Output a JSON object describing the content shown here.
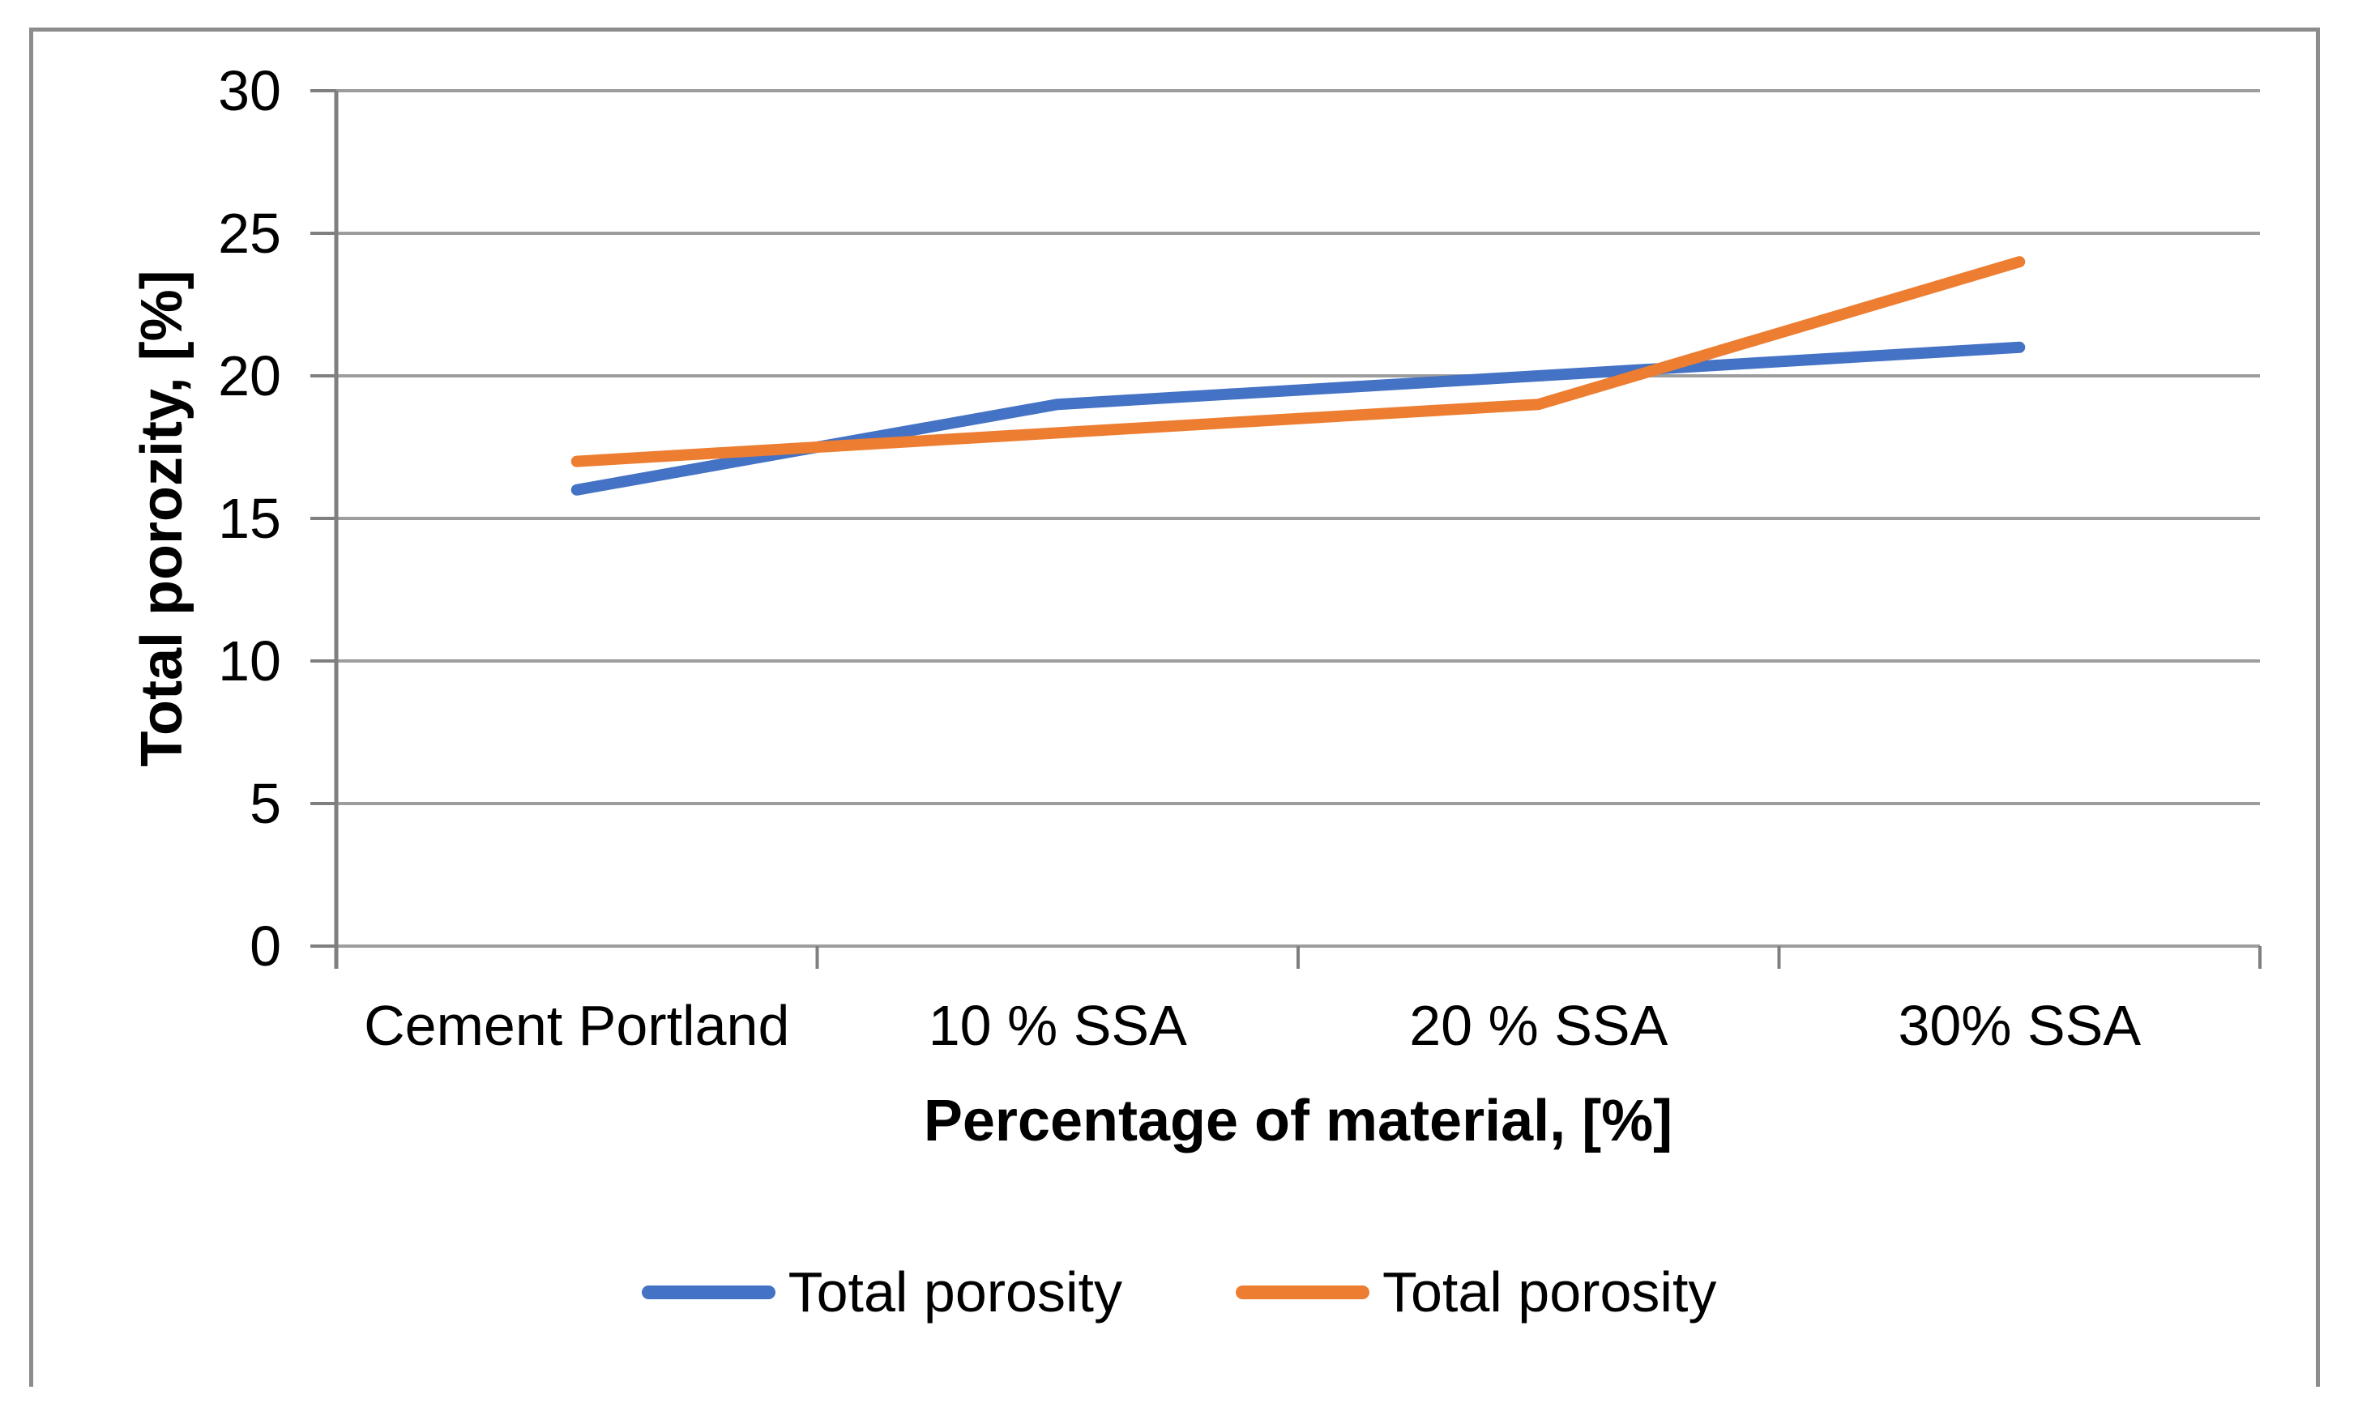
{
  "figure": {
    "border_color": "#8c8c8c",
    "background_color": "#ffffff",
    "gridline_color": "#9d9d9d",
    "axis_color": "#7f7f7f",
    "text_color": "#000000"
  },
  "chart_data": {
    "type": "line",
    "title": "",
    "categories": [
      "Cement Portland",
      "10 % SSA",
      "20 % SSA",
      "30% SSA"
    ],
    "series": [
      {
        "name": "Total porosity",
        "color": "#4472C4",
        "values": [
          16,
          19,
          20,
          21
        ]
      },
      {
        "name": "Total porosity",
        "color": "#ED7D31",
        "values": [
          17,
          18,
          19,
          24
        ]
      }
    ],
    "xlabel": "Percentage of material, [%]",
    "ylabel": "Total porozity, [%]",
    "ylim": [
      0,
      30
    ],
    "yticks": [
      0,
      5,
      10,
      15,
      20,
      25,
      30
    ],
    "grid": true,
    "legend_position": "bottom"
  }
}
